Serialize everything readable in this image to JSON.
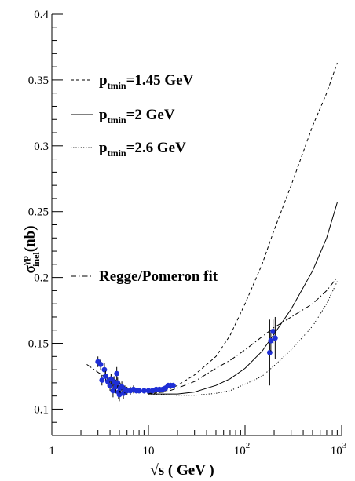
{
  "chart_data": {
    "type": "line",
    "xscale": "log",
    "xlim": [
      1,
      1000
    ],
    "ylim": [
      0.08,
      0.4
    ],
    "x_ticks": [
      {
        "value": 1,
        "label": "1"
      },
      {
        "value": 10,
        "label": "10"
      },
      {
        "value": 100,
        "label": "10",
        "sup": "2"
      },
      {
        "value": 1000,
        "label": "10",
        "sup": "3"
      }
    ],
    "y_ticks": [
      {
        "value": 0.1,
        "label": "0.1"
      },
      {
        "value": 0.15,
        "label": "0.15"
      },
      {
        "value": 0.2,
        "label": "0.2"
      },
      {
        "value": 0.25,
        "label": "0.25"
      },
      {
        "value": 0.3,
        "label": "0.3"
      },
      {
        "value": 0.35,
        "label": "0.35"
      },
      {
        "value": 0.4,
        "label": "0.4"
      }
    ],
    "xlabel": "√s ( GeV )",
    "ylabel": {
      "main": "σ",
      "sup": "γp",
      "sub": "inel",
      "tail": "(nb)"
    },
    "grid": false,
    "legend_position": "left",
    "series": [
      {
        "legend_main": "p",
        "legend_sub": "tmin",
        "legend_tail": "=1.45 GeV",
        "dash": "dashed",
        "color": "#000000",
        "points": [
          [
            10,
            0.1115
          ],
          [
            14,
            0.113
          ],
          [
            20,
            0.118
          ],
          [
            30,
            0.126
          ],
          [
            50,
            0.14
          ],
          [
            70,
            0.156
          ],
          [
            100,
            0.18
          ],
          [
            150,
            0.21
          ],
          [
            200,
            0.236
          ],
          [
            300,
            0.27
          ],
          [
            500,
            0.315
          ],
          [
            700,
            0.34
          ],
          [
            900,
            0.363
          ]
        ]
      },
      {
        "legend_main": "p",
        "legend_sub": "tmin",
        "legend_tail": "=2 GeV",
        "dash": "solid",
        "color": "#000000",
        "points": [
          [
            10,
            0.1115
          ],
          [
            20,
            0.1115
          ],
          [
            30,
            0.113
          ],
          [
            50,
            0.118
          ],
          [
            70,
            0.123
          ],
          [
            100,
            0.131
          ],
          [
            150,
            0.144
          ],
          [
            200,
            0.157
          ],
          [
            300,
            0.176
          ],
          [
            500,
            0.205
          ],
          [
            700,
            0.23
          ],
          [
            900,
            0.257
          ]
        ]
      },
      {
        "legend_main": "p",
        "legend_sub": "tmin",
        "legend_tail": "=2.6 GeV",
        "dash": "dotted",
        "color": "#000000",
        "points": [
          [
            10,
            0.1115
          ],
          [
            20,
            0.1105
          ],
          [
            30,
            0.1105
          ],
          [
            50,
            0.112
          ],
          [
            70,
            0.114
          ],
          [
            100,
            0.119
          ],
          [
            150,
            0.125
          ],
          [
            200,
            0.133
          ],
          [
            300,
            0.145
          ],
          [
            500,
            0.163
          ],
          [
            700,
            0.18
          ],
          [
            900,
            0.197
          ]
        ]
      },
      {
        "legend_main": "Regge/Pomeron fit",
        "dash": "dashdot",
        "color": "#000000",
        "points": [
          [
            2.3,
            0.134
          ],
          [
            3,
            0.128
          ],
          [
            4,
            0.122
          ],
          [
            5,
            0.117
          ],
          [
            7,
            0.113
          ],
          [
            10,
            0.112
          ],
          [
            15,
            0.113
          ],
          [
            20,
            0.116
          ],
          [
            30,
            0.121
          ],
          [
            50,
            0.131
          ],
          [
            70,
            0.137
          ],
          [
            100,
            0.145
          ],
          [
            150,
            0.155
          ],
          [
            200,
            0.162
          ],
          [
            300,
            0.17
          ],
          [
            500,
            0.18
          ],
          [
            700,
            0.19
          ],
          [
            900,
            0.2
          ]
        ]
      }
    ],
    "data_points": {
      "color": "#1f2fd6",
      "points": [
        {
          "x": 3.0,
          "y": 0.136,
          "err": 0.004
        },
        {
          "x": 3.2,
          "y": 0.134,
          "err": 0.004
        },
        {
          "x": 3.3,
          "y": 0.122,
          "err": 0.004
        },
        {
          "x": 3.5,
          "y": 0.13,
          "err": 0.005
        },
        {
          "x": 3.6,
          "y": 0.125,
          "err": 0.004
        },
        {
          "x": 3.8,
          "y": 0.121,
          "err": 0.004
        },
        {
          "x": 4.0,
          "y": 0.118,
          "err": 0.004
        },
        {
          "x": 4.1,
          "y": 0.123,
          "err": 0.004
        },
        {
          "x": 4.3,
          "y": 0.114,
          "err": 0.005
        },
        {
          "x": 4.4,
          "y": 0.121,
          "err": 0.004
        },
        {
          "x": 4.6,
          "y": 0.117,
          "err": 0.005
        },
        {
          "x": 4.7,
          "y": 0.127,
          "err": 0.005
        },
        {
          "x": 4.8,
          "y": 0.12,
          "err": 0.004
        },
        {
          "x": 4.9,
          "y": 0.113,
          "err": 0.005
        },
        {
          "x": 5.0,
          "y": 0.111,
          "err": 0.005
        },
        {
          "x": 5.1,
          "y": 0.116,
          "err": 0.004
        },
        {
          "x": 5.3,
          "y": 0.117,
          "err": 0.004
        },
        {
          "x": 5.5,
          "y": 0.112,
          "err": 0.004
        },
        {
          "x": 5.7,
          "y": 0.115,
          "err": 0.003
        },
        {
          "x": 6.0,
          "y": 0.114,
          "err": 0.003
        },
        {
          "x": 6.5,
          "y": 0.114,
          "err": 0.003
        },
        {
          "x": 7.0,
          "y": 0.115,
          "err": 0.003
        },
        {
          "x": 7.5,
          "y": 0.114,
          "err": 0.002
        },
        {
          "x": 8.0,
          "y": 0.114,
          "err": 0.002
        },
        {
          "x": 9.0,
          "y": 0.114,
          "err": 0.002
        },
        {
          "x": 10.0,
          "y": 0.114,
          "err": 0.002
        },
        {
          "x": 11.0,
          "y": 0.114,
          "err": 0.002
        },
        {
          "x": 12.0,
          "y": 0.115,
          "err": 0.002
        },
        {
          "x": 13.0,
          "y": 0.115,
          "err": 0.002
        },
        {
          "x": 14.0,
          "y": 0.115,
          "err": 0.002
        },
        {
          "x": 15.0,
          "y": 0.116,
          "err": 0.002
        },
        {
          "x": 16.0,
          "y": 0.118,
          "err": 0.002
        },
        {
          "x": 17.0,
          "y": 0.118,
          "err": 0.002
        },
        {
          "x": 18.0,
          "y": 0.118,
          "err": 0.002
        },
        {
          "x": 180,
          "y": 0.143,
          "err": 0.025
        },
        {
          "x": 185,
          "y": 0.152,
          "err": 0.008
        },
        {
          "x": 195,
          "y": 0.159,
          "err": 0.009
        },
        {
          "x": 205,
          "y": 0.154,
          "err": 0.016
        }
      ]
    }
  }
}
